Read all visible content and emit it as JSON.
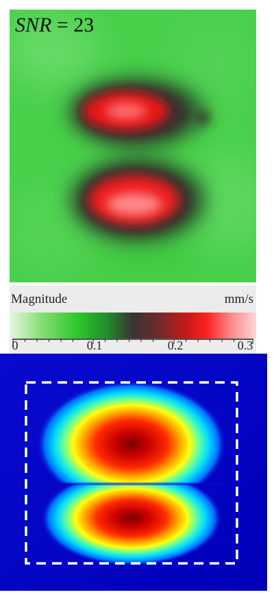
{
  "top_panel": {
    "snr_var": "SNR",
    "snr_eq": " = 23"
  },
  "colorbar": {
    "title": "Magnitude",
    "unit": "mm/s",
    "ticks": [
      "0",
      "0.1",
      "0.2",
      "0.3"
    ]
  },
  "colors": {
    "background_green": "#46d246",
    "hot_red": "#ff1f1f",
    "jet_background": "#0000c8",
    "roi_outline": "#ffffff"
  }
}
